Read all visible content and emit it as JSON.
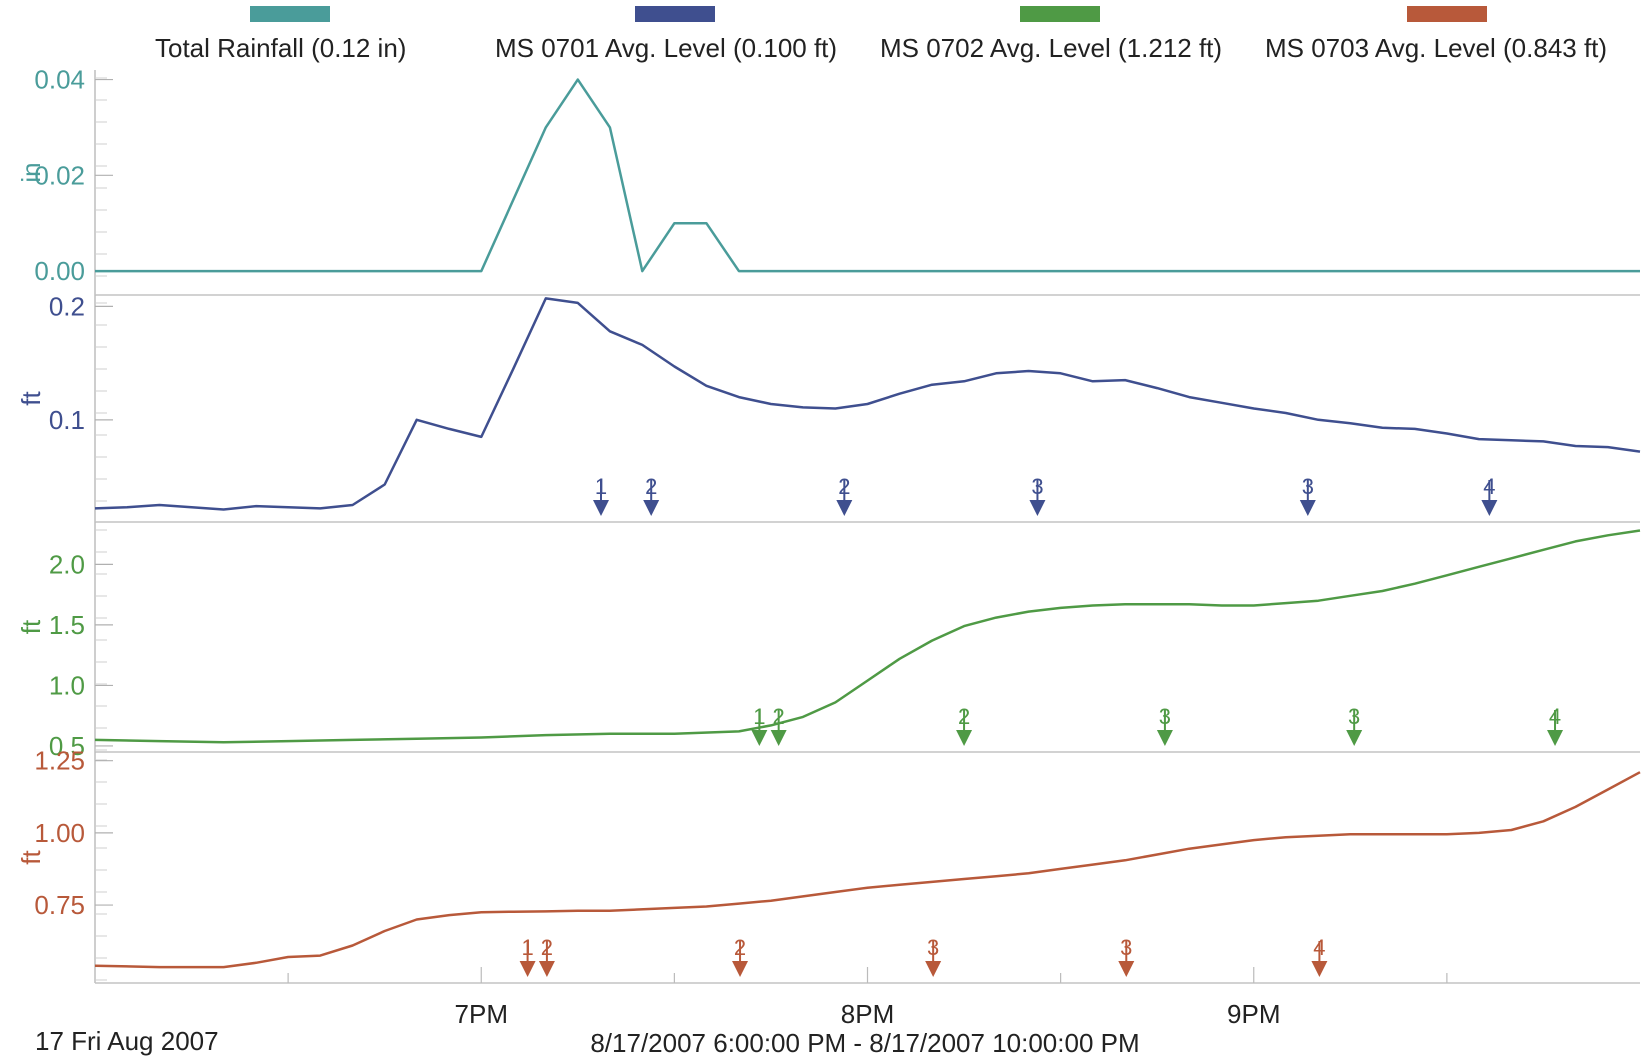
{
  "footer": {
    "date_label": "17 Fri Aug 2007",
    "range_label": "8/17/2007 6:00:00 PM - 8/17/2007 10:00:00 PM"
  },
  "chart_data": {
    "type": "line",
    "x_range": [
      "6:00 PM",
      "10:00 PM"
    ],
    "x_ticks": [
      "7PM",
      "8PM",
      "9PM"
    ],
    "grid": false,
    "legend_position": "top",
    "legend": [
      {
        "label": "Total Rainfall (0.12 in)",
        "color": "#4a9c9a"
      },
      {
        "label": "MS 0701 Avg. Level (0.100 ft)",
        "color": "#3f4f8f"
      },
      {
        "label": "MS 0702 Avg. Level (1.212 ft)",
        "color": "#4f9a45"
      },
      {
        "label": "MS 0703 Avg. Level (0.843 ft)",
        "color": "#b8593a"
      }
    ],
    "panels": [
      {
        "name": "Total Rainfall",
        "unit": "in",
        "color": "#4a9c9a",
        "ylim": [
          -0.005,
          0.042
        ],
        "yticks": [
          {
            "v": 0.0,
            "label": "0.00"
          },
          {
            "v": 0.02,
            "label": "0.02"
          },
          {
            "v": 0.04,
            "label": "0.04"
          }
        ],
        "points": [
          [
            0,
            0
          ],
          [
            0.5,
            0
          ],
          [
            1.0,
            0
          ],
          [
            1.167,
            0.03
          ],
          [
            1.25,
            0.04
          ],
          [
            1.333,
            0.03
          ],
          [
            1.417,
            0
          ],
          [
            1.5,
            0.01
          ],
          [
            1.583,
            0.01
          ],
          [
            1.667,
            0
          ],
          [
            2,
            0
          ],
          [
            3,
            0
          ],
          [
            4,
            0
          ]
        ],
        "markers": []
      },
      {
        "name": "MS 0701 Avg. Level",
        "unit": "ft",
        "color": "#3f4f8f",
        "ylim": [
          0.01,
          0.21
        ],
        "yticks": [
          {
            "v": 0.1,
            "label": "0.1"
          },
          {
            "v": 0.2,
            "label": "0.2"
          }
        ],
        "points": [
          [
            0,
            0.022
          ],
          [
            0.083,
            0.023
          ],
          [
            0.167,
            0.025
          ],
          [
            0.25,
            0.023
          ],
          [
            0.333,
            0.021
          ],
          [
            0.417,
            0.024
          ],
          [
            0.5,
            0.023
          ],
          [
            0.583,
            0.022
          ],
          [
            0.667,
            0.025
          ],
          [
            0.75,
            0.043
          ],
          [
            0.833,
            0.1
          ],
          [
            0.917,
            0.092
          ],
          [
            1.0,
            0.085
          ],
          [
            1.083,
            0.145
          ],
          [
            1.167,
            0.207
          ],
          [
            1.25,
            0.203
          ],
          [
            1.333,
            0.178
          ],
          [
            1.417,
            0.166
          ],
          [
            1.5,
            0.147
          ],
          [
            1.583,
            0.13
          ],
          [
            1.667,
            0.12
          ],
          [
            1.75,
            0.114
          ],
          [
            1.833,
            0.111
          ],
          [
            1.917,
            0.11
          ],
          [
            2.0,
            0.114
          ],
          [
            2.083,
            0.123
          ],
          [
            2.167,
            0.131
          ],
          [
            2.25,
            0.134
          ],
          [
            2.333,
            0.141
          ],
          [
            2.417,
            0.143
          ],
          [
            2.5,
            0.141
          ],
          [
            2.583,
            0.134
          ],
          [
            2.667,
            0.135
          ],
          [
            2.75,
            0.128
          ],
          [
            2.833,
            0.12
          ],
          [
            2.917,
            0.115
          ],
          [
            3.0,
            0.11
          ],
          [
            3.083,
            0.106
          ],
          [
            3.167,
            0.1
          ],
          [
            3.25,
            0.097
          ],
          [
            3.333,
            0.093
          ],
          [
            3.417,
            0.092
          ],
          [
            3.5,
            0.088
          ],
          [
            3.583,
            0.083
          ],
          [
            3.667,
            0.082
          ],
          [
            3.75,
            0.081
          ],
          [
            3.833,
            0.077
          ],
          [
            3.917,
            0.076
          ],
          [
            4.0,
            0.072
          ]
        ],
        "markers": [
          {
            "x": 1.31,
            "label": "1"
          },
          {
            "x": 1.44,
            "label": "2"
          },
          {
            "x": 1.94,
            "label": "2"
          },
          {
            "x": 2.44,
            "label": "3"
          },
          {
            "x": 3.14,
            "label": "3"
          },
          {
            "x": 3.61,
            "label": "4"
          }
        ]
      },
      {
        "name": "MS 0702 Avg. Level",
        "unit": "ft",
        "color": "#4f9a45",
        "ylim": [
          0.45,
          2.35
        ],
        "yticks": [
          {
            "v": 0.5,
            "label": "0.5"
          },
          {
            "v": 1.0,
            "label": "1.0"
          },
          {
            "v": 1.5,
            "label": "1.5"
          },
          {
            "v": 2.0,
            "label": "2.0"
          }
        ],
        "points": [
          [
            0,
            0.55
          ],
          [
            0.167,
            0.54
          ],
          [
            0.333,
            0.53
          ],
          [
            0.5,
            0.54
          ],
          [
            0.667,
            0.55
          ],
          [
            0.833,
            0.56
          ],
          [
            1.0,
            0.57
          ],
          [
            1.167,
            0.59
          ],
          [
            1.333,
            0.6
          ],
          [
            1.5,
            0.6
          ],
          [
            1.667,
            0.62
          ],
          [
            1.75,
            0.67
          ],
          [
            1.833,
            0.74
          ],
          [
            1.917,
            0.86
          ],
          [
            2.0,
            1.04
          ],
          [
            2.083,
            1.22
          ],
          [
            2.167,
            1.37
          ],
          [
            2.25,
            1.49
          ],
          [
            2.333,
            1.56
          ],
          [
            2.417,
            1.61
          ],
          [
            2.5,
            1.64
          ],
          [
            2.583,
            1.66
          ],
          [
            2.667,
            1.67
          ],
          [
            2.75,
            1.67
          ],
          [
            2.833,
            1.67
          ],
          [
            2.917,
            1.66
          ],
          [
            3.0,
            1.66
          ],
          [
            3.083,
            1.68
          ],
          [
            3.167,
            1.7
          ],
          [
            3.25,
            1.74
          ],
          [
            3.333,
            1.78
          ],
          [
            3.417,
            1.84
          ],
          [
            3.5,
            1.91
          ],
          [
            3.583,
            1.98
          ],
          [
            3.667,
            2.05
          ],
          [
            3.75,
            2.12
          ],
          [
            3.833,
            2.19
          ],
          [
            3.917,
            2.24
          ],
          [
            4.0,
            2.28
          ]
        ],
        "markers": [
          {
            "x": 1.72,
            "label": "1"
          },
          {
            "x": 1.77,
            "label": "2"
          },
          {
            "x": 2.25,
            "label": "2"
          },
          {
            "x": 2.77,
            "label": "3"
          },
          {
            "x": 3.26,
            "label": "3"
          },
          {
            "x": 3.78,
            "label": "4"
          }
        ]
      },
      {
        "name": "MS 0703 Avg. Level",
        "unit": "ft",
        "color": "#b8593a",
        "ylim": [
          0.48,
          1.28
        ],
        "yticks": [
          {
            "v": 0.75,
            "label": "0.75"
          },
          {
            "v": 1.0,
            "label": "1.00"
          },
          {
            "v": 1.25,
            "label": "1.25"
          }
        ],
        "points": [
          [
            0,
            0.54
          ],
          [
            0.167,
            0.535
          ],
          [
            0.333,
            0.535
          ],
          [
            0.417,
            0.55
          ],
          [
            0.5,
            0.57
          ],
          [
            0.583,
            0.575
          ],
          [
            0.667,
            0.61
          ],
          [
            0.75,
            0.66
          ],
          [
            0.833,
            0.7
          ],
          [
            0.917,
            0.715
          ],
          [
            1.0,
            0.725
          ],
          [
            1.083,
            0.727
          ],
          [
            1.167,
            0.728
          ],
          [
            1.25,
            0.73
          ],
          [
            1.333,
            0.73
          ],
          [
            1.5,
            0.74
          ],
          [
            1.583,
            0.745
          ],
          [
            1.667,
            0.755
          ],
          [
            1.75,
            0.765
          ],
          [
            1.833,
            0.78
          ],
          [
            1.917,
            0.795
          ],
          [
            2.0,
            0.81
          ],
          [
            2.083,
            0.82
          ],
          [
            2.167,
            0.83
          ],
          [
            2.25,
            0.84
          ],
          [
            2.333,
            0.85
          ],
          [
            2.417,
            0.86
          ],
          [
            2.5,
            0.875
          ],
          [
            2.583,
            0.89
          ],
          [
            2.667,
            0.905
          ],
          [
            2.75,
            0.925
          ],
          [
            2.833,
            0.945
          ],
          [
            2.917,
            0.96
          ],
          [
            3.0,
            0.975
          ],
          [
            3.083,
            0.985
          ],
          [
            3.167,
            0.99
          ],
          [
            3.25,
            0.995
          ],
          [
            3.333,
            0.995
          ],
          [
            3.417,
            0.995
          ],
          [
            3.5,
            0.995
          ],
          [
            3.583,
            1.0
          ],
          [
            3.667,
            1.01
          ],
          [
            3.75,
            1.04
          ],
          [
            3.833,
            1.09
          ],
          [
            3.917,
            1.15
          ],
          [
            4.0,
            1.21
          ]
        ],
        "markers": [
          {
            "x": 1.12,
            "label": "1"
          },
          {
            "x": 1.17,
            "label": "2"
          },
          {
            "x": 1.67,
            "label": "2"
          },
          {
            "x": 2.17,
            "label": "3"
          },
          {
            "x": 2.67,
            "label": "3"
          },
          {
            "x": 3.17,
            "label": "4"
          }
        ]
      }
    ]
  }
}
